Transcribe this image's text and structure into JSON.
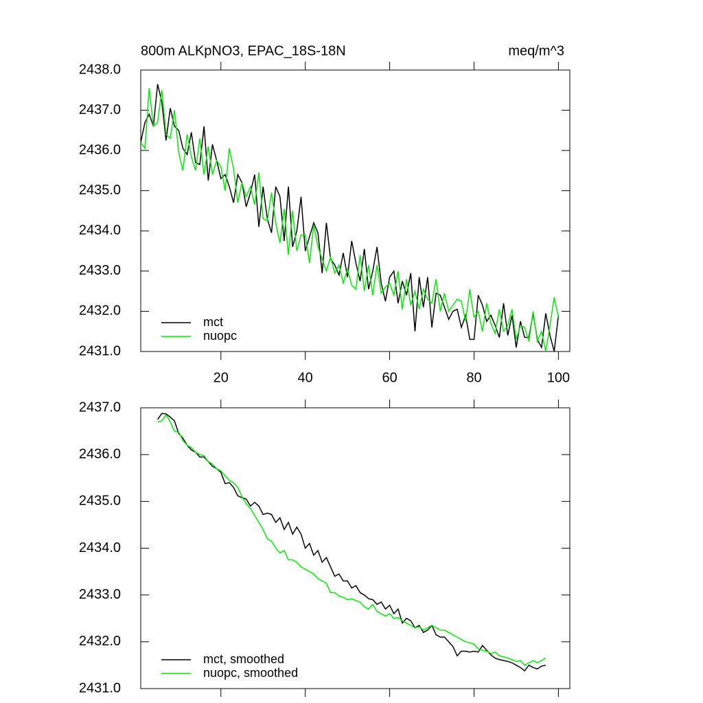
{
  "chart_data": [
    {
      "type": "line",
      "title": "800m ALKpNO3, EPAC_18S-18N",
      "units": "meq/m^3",
      "x": [
        1,
        2,
        3,
        4,
        5,
        6,
        7,
        8,
        9,
        10,
        11,
        12,
        13,
        14,
        15,
        16,
        17,
        18,
        19,
        20,
        21,
        22,
        23,
        24,
        25,
        26,
        27,
        28,
        29,
        30,
        31,
        32,
        33,
        34,
        35,
        36,
        37,
        38,
        39,
        40,
        41,
        42,
        43,
        44,
        45,
        46,
        47,
        48,
        49,
        50,
        51,
        52,
        53,
        54,
        55,
        56,
        57,
        58,
        59,
        60,
        61,
        62,
        63,
        64,
        65,
        66,
        67,
        68,
        69,
        70,
        71,
        72,
        73,
        74,
        75,
        76,
        77,
        78,
        79,
        80,
        81,
        82,
        83,
        84,
        85,
        86,
        87,
        88,
        89,
        90,
        91,
        92,
        93,
        94,
        95,
        96,
        97,
        98,
        99,
        100
      ],
      "series": [
        {
          "name": "mct",
          "color": "#000000",
          "values": [
            2436.2,
            2436.7,
            2436.9,
            2436.6,
            2437.65,
            2437.2,
            2436.25,
            2437.05,
            2436.6,
            2436.5,
            2436.05,
            2435.9,
            2436.45,
            2435.7,
            2435.65,
            2436.6,
            2435.25,
            2436.15,
            2435.75,
            2435.3,
            2435.4,
            2435.1,
            2434.7,
            2435.4,
            2435.2,
            2434.6,
            2434.95,
            2435.4,
            2434.1,
            2435.1,
            2434.3,
            2433.95,
            2435.1,
            2434.85,
            2433.75,
            2435.1,
            2433.6,
            2434.0,
            2434.85,
            2433.5,
            2433.85,
            2434.2,
            2433.95,
            2432.95,
            2434.2,
            2433.3,
            2433.15,
            2432.9,
            2433.45,
            2432.85,
            2433.75,
            2433.2,
            2432.75,
            2433.55,
            2432.55,
            2433.0,
            2433.6,
            2432.7,
            2432.25,
            2432.85,
            2433.0,
            2432.2,
            2432.75,
            2432.4,
            2432.95,
            2431.5,
            2432.85,
            2432.1,
            2432.85,
            2431.6,
            2432.45,
            2432.4,
            2432.1,
            2431.8,
            2432.0,
            2432.05,
            2431.6,
            2431.9,
            2431.3,
            2431.3,
            2432.4,
            2432.15,
            2431.75,
            2431.9,
            2431.65,
            2431.35,
            2432.2,
            2431.4,
            2431.9,
            2431.1,
            2431.75,
            2431.35,
            2431.35,
            2431.95,
            2431.3,
            2431.1,
            2431.95,
            2431.4,
            2431.0,
            2431.9
          ]
        },
        {
          "name": "nuopc",
          "color": "#00ee00",
          "values": [
            2436.2,
            2436.05,
            2437.55,
            2436.6,
            2436.7,
            2437.5,
            2436.4,
            2436.3,
            2437.0,
            2435.95,
            2435.5,
            2436.4,
            2435.85,
            2435.5,
            2436.3,
            2435.4,
            2436.1,
            2435.4,
            2435.75,
            2435.6,
            2435.0,
            2436.05,
            2435.55,
            2434.7,
            2435.2,
            2434.85,
            2435.1,
            2434.65,
            2435.45,
            2434.3,
            2434.25,
            2434.95,
            2434.2,
            2433.7,
            2434.55,
            2433.4,
            2434.5,
            2433.5,
            2433.9,
            2433.9,
            2433.2,
            2434.15,
            2433.6,
            2433.3,
            2433.0,
            2433.35,
            2432.95,
            2433.15,
            2432.7,
            2433.05,
            2432.65,
            2432.55,
            2433.4,
            2432.5,
            2433.15,
            2432.4,
            2433.15,
            2432.45,
            2432.6,
            2432.7,
            2432.4,
            2433.0,
            2432.05,
            2432.8,
            2432.15,
            2432.5,
            2432.05,
            2432.55,
            2432.3,
            2432.2,
            2432.8,
            2432.0,
            2432.45,
            2432.0,
            2432.15,
            2432.3,
            2432.25,
            2431.75,
            2432.55,
            2431.85,
            2432.0,
            2431.5,
            2432.2,
            2431.7,
            2431.45,
            2432.05,
            2431.5,
            2431.65,
            2432.05,
            2431.3,
            2431.65,
            2431.6,
            2431.25,
            2432.0,
            2431.25,
            2431.5,
            2431.0,
            2431.65,
            2432.35,
            2431.85
          ]
        }
      ],
      "xlim": [
        1,
        102.7
      ],
      "ylim": [
        2431,
        2438
      ],
      "xticks": [
        20,
        40,
        60,
        80,
        100
      ],
      "yticks": [
        {
          "value": 2431,
          "label": "2431.0"
        },
        {
          "value": 2432,
          "label": "2432.0"
        },
        {
          "value": 2433,
          "label": "2433.0"
        },
        {
          "value": 2434,
          "label": "2434.0"
        },
        {
          "value": 2435,
          "label": "2435.0"
        },
        {
          "value": 2436,
          "label": "2436.0"
        },
        {
          "value": 2437,
          "label": "2437.0"
        },
        {
          "value": 2438,
          "label": "2438.0"
        }
      ],
      "xtick_labels": true,
      "legend": "lower left"
    },
    {
      "type": "line",
      "x": [
        5,
        6,
        7,
        8,
        9,
        10,
        11,
        12,
        13,
        14,
        15,
        16,
        17,
        18,
        19,
        20,
        21,
        22,
        23,
        24,
        25,
        26,
        27,
        28,
        29,
        30,
        31,
        32,
        33,
        34,
        35,
        36,
        37,
        38,
        39,
        40,
        41,
        42,
        43,
        44,
        45,
        46,
        47,
        48,
        49,
        50,
        51,
        52,
        53,
        54,
        55,
        56,
        57,
        58,
        59,
        60,
        61,
        62,
        63,
        64,
        65,
        66,
        67,
        68,
        69,
        70,
        71,
        72,
        73,
        74,
        75,
        76,
        77,
        78,
        79,
        80,
        81,
        82,
        83,
        84,
        85,
        86,
        87,
        88,
        89,
        90,
        91,
        92,
        93,
        94,
        95,
        96,
        97
      ],
      "series": [
        {
          "name": "mct, smoothed",
          "color": "#000000",
          "values": [
            2436.75,
            2436.88,
            2436.87,
            2436.8,
            2436.72,
            2436.45,
            2436.35,
            2436.2,
            2436.1,
            2436.05,
            2435.95,
            2435.95,
            2435.85,
            2435.75,
            2435.7,
            2435.62,
            2435.38,
            2435.4,
            2435.3,
            2435.12,
            2435.08,
            2435.05,
            2434.9,
            2434.98,
            2434.9,
            2434.72,
            2434.75,
            2434.72,
            2434.55,
            2434.65,
            2434.4,
            2434.55,
            2434.3,
            2434.45,
            2434.3,
            2434.0,
            2434.1,
            2433.85,
            2433.95,
            2433.7,
            2433.8,
            2433.6,
            2433.4,
            2433.45,
            2433.3,
            2433.3,
            2433.15,
            2433.2,
            2433.05,
            2433.0,
            2432.92,
            2432.9,
            2432.8,
            2432.85,
            2432.7,
            2432.78,
            2432.6,
            2432.7,
            2432.4,
            2432.5,
            2432.45,
            2432.3,
            2432.35,
            2432.2,
            2432.25,
            2432.35,
            2432.15,
            2432.1,
            2432.1,
            2432.0,
            2431.9,
            2431.7,
            2431.8,
            2431.8,
            2431.78,
            2431.8,
            2431.78,
            2431.92,
            2431.82,
            2431.72,
            2431.65,
            2431.62,
            2431.6,
            2431.58,
            2431.55,
            2431.5,
            2431.45,
            2431.38,
            2431.5,
            2431.45,
            2431.42,
            2431.48,
            2431.5
          ]
        },
        {
          "name": "nuopc, smoothed",
          "color": "#00ee00",
          "values": [
            2436.7,
            2436.72,
            2436.85,
            2436.7,
            2436.5,
            2436.48,
            2436.3,
            2436.2,
            2436.15,
            2436.05,
            2436.0,
            2435.98,
            2435.85,
            2435.8,
            2435.7,
            2435.65,
            2435.55,
            2435.45,
            2435.4,
            2435.3,
            2435.1,
            2434.95,
            2434.85,
            2434.7,
            2434.55,
            2434.4,
            2434.2,
            2434.15,
            2434.0,
            2433.9,
            2433.95,
            2433.75,
            2433.75,
            2433.7,
            2433.6,
            2433.55,
            2433.5,
            2433.45,
            2433.35,
            2433.3,
            2433.25,
            2433.05,
            2433.05,
            2432.98,
            2432.95,
            2432.9,
            2432.92,
            2432.88,
            2432.85,
            2432.75,
            2432.7,
            2432.8,
            2432.65,
            2432.6,
            2432.55,
            2432.6,
            2432.5,
            2432.52,
            2432.45,
            2432.4,
            2432.35,
            2432.3,
            2432.32,
            2432.25,
            2432.3,
            2432.35,
            2432.3,
            2432.25,
            2432.25,
            2432.2,
            2432.15,
            2432.1,
            2432.05,
            2432.0,
            2431.98,
            2431.95,
            2431.85,
            2431.82,
            2431.8,
            2431.75,
            2431.78,
            2431.7,
            2431.68,
            2431.65,
            2431.62,
            2431.58,
            2431.6,
            2431.5,
            2431.55,
            2431.6,
            2431.55,
            2431.6,
            2431.65
          ]
        }
      ],
      "xlim": [
        1,
        102.7
      ],
      "ylim": [
        2431,
        2437
      ],
      "xticks": [
        20,
        40,
        60,
        80,
        100
      ],
      "yticks": [
        {
          "value": 2431,
          "label": "2431.0"
        },
        {
          "value": 2432,
          "label": "2432.0"
        },
        {
          "value": 2433,
          "label": "2433.0"
        },
        {
          "value": 2434,
          "label": "2434.0"
        },
        {
          "value": 2435,
          "label": "2435.0"
        },
        {
          "value": 2436,
          "label": "2436.0"
        },
        {
          "value": 2437,
          "label": "2437.0"
        }
      ],
      "xtick_labels": false,
      "legend": "lower left"
    }
  ]
}
